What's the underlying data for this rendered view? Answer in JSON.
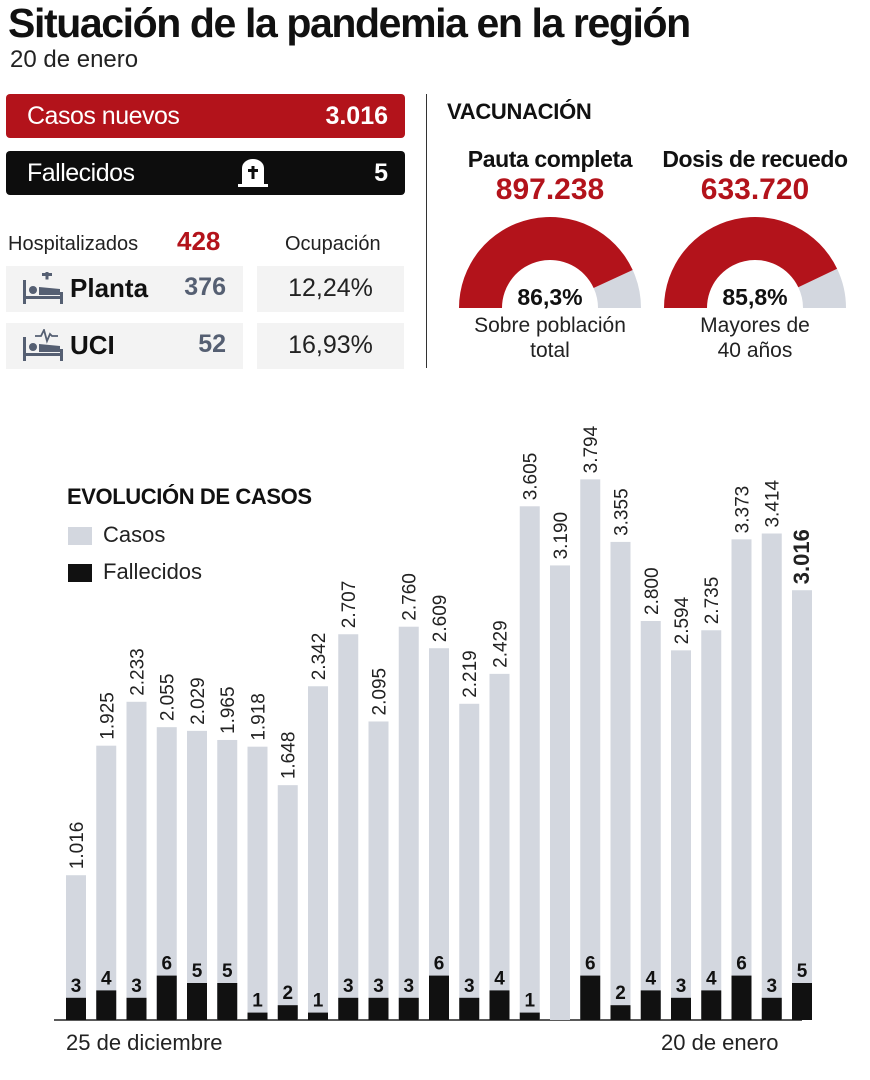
{
  "header": {
    "title": "Situación de la pandemia en la región",
    "date": "20 de enero"
  },
  "summary": {
    "new_cases_label": "Casos nuevos",
    "new_cases_value": "3.016",
    "deaths_label": "Fallecidos",
    "deaths_value": "5",
    "deaths_icon": "tombstone-icon"
  },
  "hospital": {
    "label": "Hospitalizados",
    "value": "428",
    "occupancy_label": "Ocupación",
    "rows": [
      {
        "name": "Planta",
        "value": "376",
        "occupancy": "12,24%",
        "icon": "hospital-bed-icon"
      },
      {
        "name": "UCI",
        "value": "52",
        "occupancy": "16,93%",
        "icon": "icu-bed-icon"
      }
    ]
  },
  "vaccination": {
    "title": "VACUNACIÓN",
    "items": [
      {
        "heading": "Pauta completa",
        "value": "897.238",
        "percent_label": "86,3%",
        "percent": 86.3,
        "subtitle_line1": "Sobre población",
        "subtitle_line2": "total"
      },
      {
        "heading": "Dosis de recuedo",
        "value": "633.720",
        "percent_label": "85,8%",
        "percent": 85.8,
        "subtitle_line1": "Mayores de",
        "subtitle_line2": "40 años"
      }
    ]
  },
  "colors": {
    "accent": "#b3131b",
    "dark": "#0d0d0d",
    "cases_bar": "#d3d7df",
    "deaths_bar": "#111111",
    "gauge_rest": "#d3d7df"
  },
  "chart_data": {
    "type": "bar",
    "title": "EVOLUCIÓN DE CASOS",
    "x_first_label": "25 de diciembre",
    "x_last_label": "20 de enero",
    "ylim": [
      0,
      3900
    ],
    "grid": false,
    "legend_position": "top-left",
    "series": [
      {
        "name": "Casos",
        "values": [
          1016,
          1925,
          2233,
          2055,
          2029,
          1965,
          1918,
          1648,
          2342,
          2707,
          2095,
          2760,
          2609,
          2219,
          2429,
          3605,
          3190,
          3794,
          3355,
          2800,
          2594,
          2735,
          3373,
          3414,
          3016
        ],
        "labels": [
          "1.016",
          "1.925",
          "2.233",
          "2.055",
          "2.029",
          "1.965",
          "1.918",
          "1.648",
          "2.342",
          "2.707",
          "2.095",
          "2.760",
          "2.609",
          "2.219",
          "2.429",
          "3.605",
          "3.190",
          "3.794",
          "3.355",
          "2.800",
          "2.594",
          "2.735",
          "3.373",
          "3.414",
          "3.016"
        ]
      },
      {
        "name": "Fallecidos",
        "values": [
          3,
          4,
          3,
          6,
          5,
          5,
          1,
          2,
          1,
          3,
          3,
          3,
          6,
          3,
          4,
          1,
          null,
          6,
          2,
          4,
          3,
          4,
          6,
          3,
          5
        ],
        "labels": [
          "3",
          "4",
          "3",
          "6",
          "5",
          "5",
          "1",
          "2",
          "1",
          "3",
          "3",
          "3",
          "6",
          "3",
          "4",
          "1",
          "",
          "6",
          "2",
          "4",
          "3",
          "4",
          "6",
          "3",
          "5"
        ]
      }
    ]
  }
}
